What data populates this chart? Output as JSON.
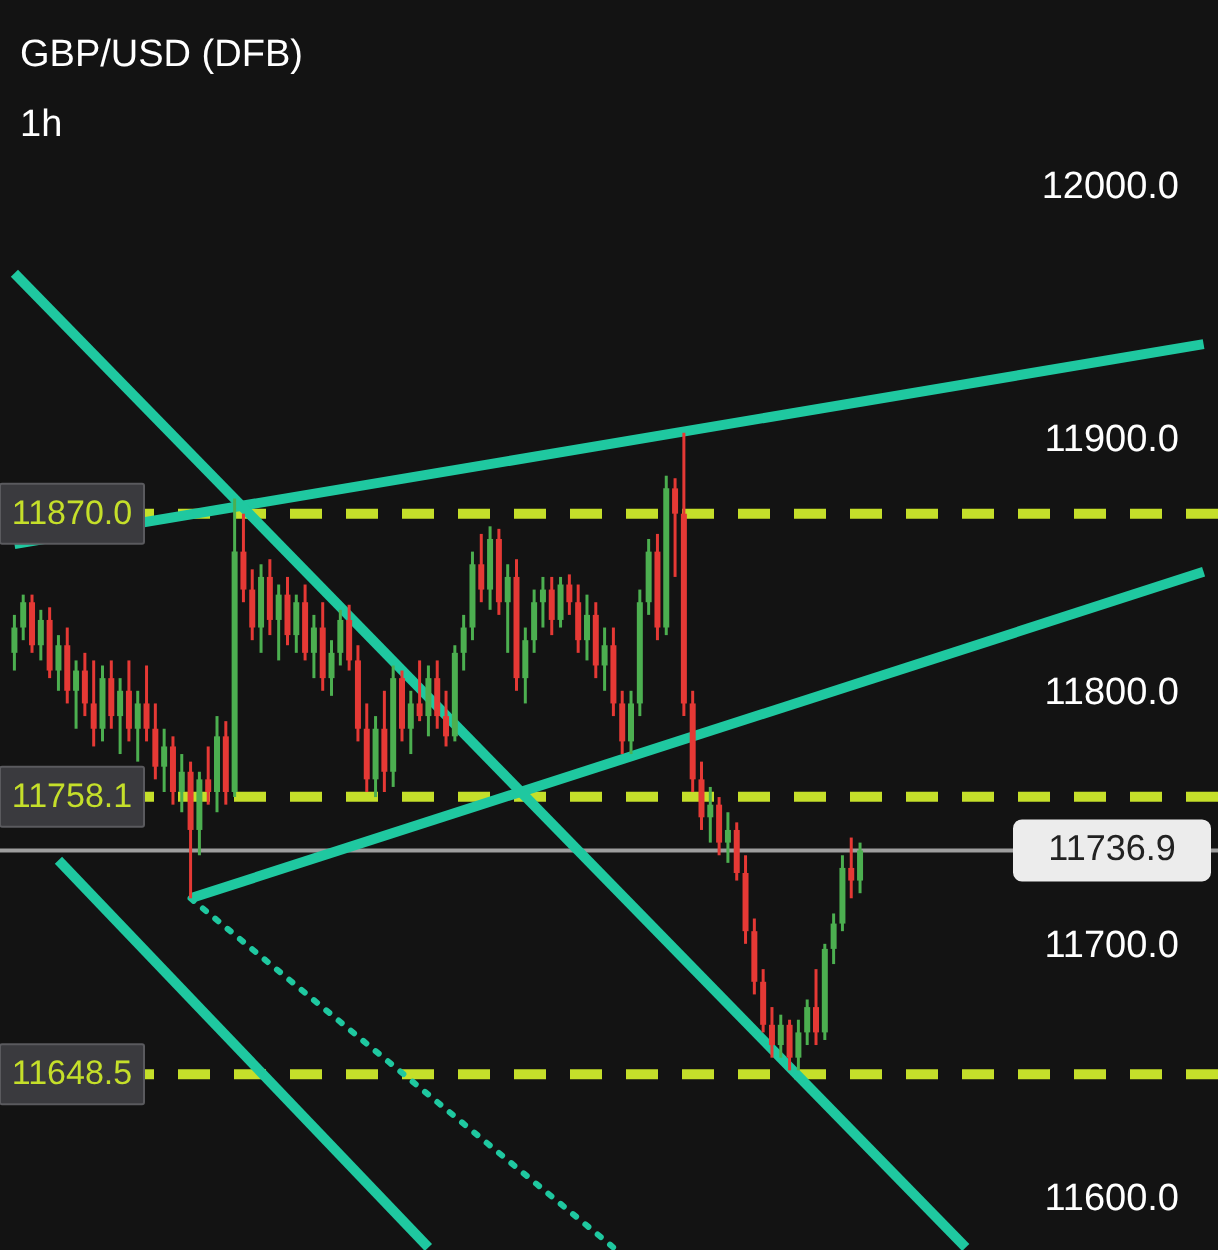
{
  "chart_data": {
    "type": "candlestick",
    "title": "GBP/USD (DFB)",
    "subtitle": "1h",
    "categories": [
      null,
      null,
      null,
      null,
      null,
      null,
      null,
      null,
      null,
      null,
      null,
      null,
      null,
      null,
      null,
      null,
      null,
      null,
      null,
      null,
      null,
      null,
      null,
      null,
      null,
      null,
      null,
      null,
      null,
      null,
      null,
      null,
      null,
      null,
      null,
      null,
      null,
      null,
      null,
      null,
      null,
      null,
      null,
      null,
      null,
      null,
      null,
      null,
      null,
      null,
      null,
      null,
      null,
      null,
      null,
      null,
      null,
      null,
      null,
      null,
      null,
      null,
      null,
      null,
      null,
      null,
      null,
      null,
      null,
      null,
      null,
      null,
      null,
      null,
      null,
      null,
      null,
      null,
      null,
      null,
      null,
      null,
      null,
      null,
      null,
      null,
      null,
      null,
      null,
      null,
      null,
      null,
      null,
      null,
      null,
      null,
      null,
      null,
      null,
      null,
      null,
      null,
      null,
      null,
      null,
      null,
      null,
      null,
      null,
      null,
      null,
      null,
      null,
      null,
      null,
      null,
      null,
      null,
      null,
      null,
      null,
      null,
      null,
      null,
      null,
      null,
      null,
      null,
      null,
      null,
      null,
      null,
      null,
      null,
      null,
      null
    ],
    "ohlc": [
      [
        11815,
        11830,
        11808,
        11825
      ],
      [
        11825,
        11838,
        11820,
        11835
      ],
      [
        11835,
        11838,
        11815,
        11818
      ],
      [
        11818,
        11832,
        11812,
        11828
      ],
      [
        11828,
        11833,
        11805,
        11808
      ],
      [
        11808,
        11822,
        11800,
        11818
      ],
      [
        11818,
        11825,
        11795,
        11800
      ],
      [
        11800,
        11812,
        11785,
        11808
      ],
      [
        11808,
        11815,
        11790,
        11795
      ],
      [
        11795,
        11812,
        11778,
        11785
      ],
      [
        11785,
        11810,
        11780,
        11805
      ],
      [
        11805,
        11812,
        11785,
        11790
      ],
      [
        11790,
        11805,
        11775,
        11800
      ],
      [
        11800,
        11812,
        11780,
        11785
      ],
      [
        11785,
        11800,
        11772,
        11795
      ],
      [
        11795,
        11810,
        11780,
        11785
      ],
      [
        11785,
        11795,
        11765,
        11770
      ],
      [
        11770,
        11785,
        11760,
        11778
      ],
      [
        11778,
        11782,
        11755,
        11760
      ],
      [
        11760,
        11775,
        11752,
        11768
      ],
      [
        11768,
        11772,
        11718,
        11745
      ],
      [
        11745,
        11768,
        11735,
        11765
      ],
      [
        11765,
        11778,
        11755,
        11760
      ],
      [
        11760,
        11790,
        11752,
        11782
      ],
      [
        11782,
        11788,
        11755,
        11760
      ],
      [
        11760,
        11876,
        11758,
        11855
      ],
      [
        11855,
        11870,
        11835,
        11840
      ],
      [
        11840,
        11848,
        11820,
        11825
      ],
      [
        11825,
        11850,
        11815,
        11845
      ],
      [
        11845,
        11852,
        11822,
        11828
      ],
      [
        11828,
        11842,
        11812,
        11838
      ],
      [
        11838,
        11845,
        11818,
        11822
      ],
      [
        11822,
        11838,
        11815,
        11835
      ],
      [
        11835,
        11842,
        11812,
        11815
      ],
      [
        11815,
        11830,
        11805,
        11825
      ],
      [
        11825,
        11835,
        11800,
        11805
      ],
      [
        11805,
        11820,
        11798,
        11815
      ],
      [
        11815,
        11832,
        11810,
        11828
      ],
      [
        11828,
        11834,
        11808,
        11812
      ],
      [
        11812,
        11818,
        11780,
        11785
      ],
      [
        11785,
        11795,
        11760,
        11765
      ],
      [
        11765,
        11790,
        11758,
        11785
      ],
      [
        11785,
        11800,
        11760,
        11768
      ],
      [
        11768,
        11810,
        11762,
        11805
      ],
      [
        11805,
        11808,
        11780,
        11785
      ],
      [
        11785,
        11800,
        11775,
        11795
      ],
      [
        11795,
        11812,
        11788,
        11790
      ],
      [
        11790,
        11810,
        11782,
        11805
      ],
      [
        11805,
        11812,
        11785,
        11790
      ],
      [
        11790,
        11800,
        11778,
        11782
      ],
      [
        11782,
        11818,
        11780,
        11815
      ],
      [
        11815,
        11830,
        11808,
        11825
      ],
      [
        11825,
        11855,
        11820,
        11850
      ],
      [
        11850,
        11862,
        11835,
        11840
      ],
      [
        11840,
        11865,
        11832,
        11860
      ],
      [
        11860,
        11864,
        11830,
        11835
      ],
      [
        11835,
        11850,
        11815,
        11845
      ],
      [
        11845,
        11852,
        11800,
        11805
      ],
      [
        11805,
        11825,
        11795,
        11820
      ],
      [
        11820,
        11840,
        11815,
        11835
      ],
      [
        11835,
        11845,
        11825,
        11840
      ],
      [
        11840,
        11845,
        11822,
        11828
      ],
      [
        11828,
        11845,
        11825,
        11842
      ],
      [
        11842,
        11846,
        11830,
        11835
      ],
      [
        11835,
        11842,
        11815,
        11820
      ],
      [
        11820,
        11838,
        11812,
        11830
      ],
      [
        11830,
        11835,
        11805,
        11810
      ],
      [
        11810,
        11825,
        11800,
        11818
      ],
      [
        11818,
        11825,
        11790,
        11795
      ],
      [
        11795,
        11800,
        11775,
        11780
      ],
      [
        11780,
        11800,
        11775,
        11795
      ],
      [
        11795,
        11840,
        11790,
        11835
      ],
      [
        11835,
        11860,
        11830,
        11855
      ],
      [
        11855,
        11862,
        11820,
        11825
      ],
      [
        11825,
        11885,
        11822,
        11880
      ],
      [
        11880,
        11884,
        11845,
        11870
      ],
      [
        11870,
        11902,
        11790,
        11795
      ],
      [
        11795,
        11800,
        11760,
        11765
      ],
      [
        11765,
        11772,
        11745,
        11750
      ],
      [
        11750,
        11762,
        11740,
        11755
      ],
      [
        11755,
        11758,
        11735,
        11740
      ],
      [
        11740,
        11752,
        11732,
        11745
      ],
      [
        11745,
        11748,
        11725,
        11728
      ],
      [
        11728,
        11735,
        11700,
        11705
      ],
      [
        11705,
        11710,
        11680,
        11685
      ],
      [
        11685,
        11690,
        11665,
        11668
      ],
      [
        11668,
        11675,
        11655,
        11660
      ],
      [
        11660,
        11672,
        11655,
        11668
      ],
      [
        11668,
        11670,
        11650,
        11655
      ],
      [
        11655,
        11670,
        11650,
        11665
      ],
      [
        11665,
        11678,
        11660,
        11675
      ],
      [
        11675,
        11690,
        11660,
        11665
      ],
      [
        11665,
        11700,
        11662,
        11698
      ],
      [
        11698,
        11712,
        11692,
        11708
      ],
      [
        11708,
        11735,
        11705,
        11730
      ],
      [
        11730,
        11742,
        11718,
        11725
      ],
      [
        11725,
        11740,
        11720,
        11736.9
      ],
      null,
      null,
      null,
      null,
      null,
      null,
      null,
      null,
      null,
      null,
      null,
      null,
      null,
      null,
      null,
      null,
      null,
      null,
      null,
      null,
      null,
      null,
      null,
      null,
      null,
      null,
      null,
      null,
      null,
      null,
      null,
      null,
      null,
      null,
      null,
      null,
      null,
      null,
      null
    ],
    "series": [
      {
        "type": "line",
        "color": "#1fc8a0",
        "values": [
          11858,
          null,
          null,
          null,
          null,
          null,
          null,
          null,
          null,
          null,
          null,
          null,
          null,
          null,
          null,
          null,
          null,
          null,
          null,
          null,
          null,
          null,
          null,
          null,
          null,
          null,
          null,
          null,
          null,
          null,
          null,
          null,
          null,
          null,
          null,
          null,
          null,
          null,
          null,
          null,
          null,
          null,
          null,
          null,
          null,
          null,
          null,
          null,
          null,
          null,
          null,
          null,
          null,
          null,
          null,
          null,
          null,
          null,
          null,
          null,
          null,
          null,
          null,
          null,
          null,
          null,
          null,
          null,
          null,
          null,
          null,
          null,
          null,
          null,
          null,
          null,
          null,
          null,
          null,
          null,
          null,
          null,
          null,
          null,
          null,
          null,
          null,
          null,
          null,
          null,
          null,
          null,
          null,
          null,
          null,
          null,
          null,
          null,
          null,
          null,
          null,
          null,
          null,
          null,
          null,
          null,
          null,
          null,
          null,
          null,
          null,
          null,
          null,
          null,
          null,
          null,
          null,
          null,
          null,
          null,
          null,
          null,
          null,
          null,
          null,
          null,
          null,
          null,
          null,
          null,
          null,
          null,
          null,
          null,
          null,
          11937
        ]
      },
      {
        "type": "line",
        "color": "#1fc8a0",
        "values": [
          null,
          null,
          null,
          null,
          null,
          null,
          null,
          null,
          null,
          null,
          null,
          null,
          null,
          null,
          null,
          null,
          null,
          null,
          null,
          null,
          11718,
          null,
          null,
          null,
          null,
          null,
          null,
          null,
          null,
          null,
          null,
          null,
          null,
          null,
          null,
          null,
          null,
          null,
          null,
          null,
          null,
          null,
          null,
          null,
          null,
          null,
          null,
          null,
          null,
          null,
          null,
          null,
          null,
          null,
          null,
          null,
          null,
          null,
          null,
          null,
          null,
          null,
          null,
          null,
          null,
          null,
          null,
          null,
          null,
          null,
          null,
          null,
          null,
          null,
          null,
          null,
          null,
          null,
          null,
          null,
          null,
          null,
          null,
          null,
          null,
          null,
          null,
          null,
          null,
          null,
          null,
          null,
          null,
          null,
          null,
          null,
          null,
          null,
          null,
          null,
          null,
          null,
          null,
          null,
          null,
          null,
          null,
          null,
          null,
          null,
          null,
          null,
          null,
          null,
          null,
          null,
          null,
          null,
          null,
          null,
          null,
          null,
          null,
          null,
          null,
          null,
          null,
          null,
          null,
          null,
          null,
          null,
          null,
          null,
          null,
          11847
        ]
      },
      {
        "type": "line",
        "color": "#1fc8a0",
        "values": [
          11965,
          null,
          null,
          null,
          null,
          null,
          null,
          null,
          null,
          null,
          null,
          null,
          null,
          null,
          null,
          null,
          null,
          null,
          null,
          null,
          null,
          null,
          null,
          null,
          null,
          null,
          null,
          null,
          null,
          null,
          null,
          null,
          null,
          null,
          null,
          null,
          null,
          null,
          null,
          null,
          null,
          null,
          null,
          null,
          null,
          null,
          null,
          null,
          null,
          null,
          null,
          null,
          null,
          null,
          null,
          null,
          null,
          null,
          null,
          null,
          null,
          null,
          null,
          null,
          null,
          null,
          null,
          null,
          null,
          null,
          null,
          null,
          null,
          null,
          null,
          null,
          null,
          null,
          null,
          null,
          null,
          null,
          null,
          null,
          null,
          null,
          null,
          null,
          null,
          null,
          null,
          null,
          null,
          null,
          null,
          null,
          null,
          null,
          null,
          null,
          null,
          null,
          null,
          null,
          null,
          null,
          null,
          null,
          11580,
          null,
          null,
          null,
          null,
          null,
          null,
          null,
          null,
          null,
          null,
          null,
          null,
          null,
          null,
          null,
          null,
          null,
          null,
          null,
          null,
          null,
          null,
          null,
          null,
          null,
          null,
          null
        ]
      },
      {
        "type": "line",
        "color": "#1fc8a0",
        "values": [
          null,
          null,
          null,
          null,
          null,
          11733,
          null,
          null,
          null,
          null,
          null,
          null,
          null,
          null,
          null,
          null,
          null,
          null,
          null,
          null,
          null,
          null,
          null,
          null,
          null,
          null,
          null,
          null,
          null,
          null,
          null,
          null,
          null,
          null,
          null,
          null,
          null,
          null,
          null,
          null,
          null,
          null,
          null,
          null,
          null,
          null,
          null,
          11580,
          null,
          null,
          null,
          null,
          null,
          null,
          null,
          null,
          null,
          null,
          null,
          null,
          null,
          null,
          null,
          null,
          null,
          null,
          null,
          null,
          null,
          null,
          null,
          null,
          null,
          null,
          null,
          null,
          null,
          null,
          null,
          null,
          null,
          null,
          null,
          null,
          null,
          null,
          null,
          null,
          null,
          null,
          null,
          null,
          null,
          null,
          null,
          null,
          null,
          null,
          null,
          null,
          null,
          null,
          null,
          null,
          null,
          null,
          null,
          null,
          null,
          null,
          null,
          null,
          null,
          null,
          null,
          null,
          null,
          null,
          null,
          null,
          null,
          null,
          null,
          null,
          null,
          null,
          null,
          null,
          null,
          null,
          null,
          null,
          null,
          null,
          null,
          null
        ]
      },
      {
        "type": "line",
        "color": "#1fc8a0",
        "line_style": "dotted",
        "values": [
          null,
          null,
          null,
          null,
          null,
          null,
          null,
          null,
          null,
          null,
          null,
          null,
          null,
          null,
          null,
          null,
          null,
          null,
          null,
          null,
          11718,
          null,
          null,
          null,
          null,
          null,
          null,
          null,
          null,
          null,
          null,
          null,
          null,
          null,
          null,
          null,
          null,
          null,
          null,
          null,
          null,
          null,
          null,
          null,
          null,
          null,
          null,
          null,
          null,
          null,
          null,
          null,
          null,
          null,
          null,
          null,
          null,
          null,
          null,
          null,
          null,
          null,
          null,
          null,
          null,
          null,
          null,
          null,
          11580,
          null,
          null,
          null,
          null,
          null,
          null,
          null,
          null,
          null,
          null,
          null,
          null,
          null,
          null,
          null,
          null,
          null,
          null,
          null,
          null,
          null,
          null,
          null,
          null,
          null,
          null,
          null,
          null,
          null,
          null,
          null,
          null,
          null,
          null,
          null,
          null,
          null,
          null,
          null,
          null,
          null,
          null,
          null,
          null,
          null,
          null,
          null,
          null,
          null,
          null,
          null,
          null,
          null,
          null,
          null,
          null,
          null,
          null,
          null,
          null,
          null,
          null,
          null,
          null,
          null,
          null,
          null
        ]
      }
    ],
    "ylim": [
      11579,
      12073
    ],
    "yticks": [
      {
        "value": 11600,
        "label": "11600.0"
      },
      {
        "value": 11700,
        "label": "11700.0"
      },
      {
        "value": 11800,
        "label": "11800.0"
      },
      {
        "value": 11900,
        "label": "11900.0"
      },
      {
        "value": 12000,
        "label": "12000.0"
      }
    ],
    "tick_labels": "y",
    "ref_lines": [
      {
        "axis": "y",
        "value": 11870,
        "label": "11870.0",
        "color": "#c5df2a",
        "line_style": "dashed"
      },
      {
        "axis": "y",
        "value": 11758.1,
        "label": "11758.1",
        "color": "#c5df2a",
        "line_style": "dashed"
      },
      {
        "axis": "y",
        "value": 11648.5,
        "label": "11648.5",
        "color": "#c5df2a",
        "line_style": "dashed"
      },
      {
        "axis": "y",
        "value": 11736.9,
        "label": "11736.9",
        "color": "#9e9e9e",
        "line_style": "solid"
      }
    ]
  }
}
